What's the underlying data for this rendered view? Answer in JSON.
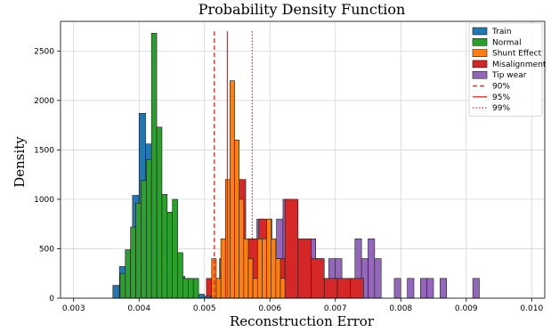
{
  "chart_data": {
    "type": "histogram",
    "title": "Probability Density Function",
    "xlabel": "Reconstruction Error",
    "ylabel": "Density",
    "xlim": [
      0.0028,
      0.0102
    ],
    "ylim": [
      0,
      2800
    ],
    "xticks": [
      0.003,
      0.004,
      0.005,
      0.006,
      0.007,
      0.008,
      0.009,
      0.01
    ],
    "xtick_labels": [
      "0.003",
      "0.004",
      "0.005",
      "0.006",
      "0.007",
      "0.008",
      "0.009",
      "0.010"
    ],
    "yticks": [
      0,
      500,
      1000,
      1500,
      2000,
      2500
    ],
    "ytick_labels": [
      "0",
      "500",
      "1000",
      "1500",
      "2000",
      "2500"
    ],
    "grid": true,
    "legend_position": "top-right",
    "series": [
      {
        "name": "Train",
        "color": "#1f77b4",
        "bins": [
          {
            "x0": 0.0036,
            "x1": 0.0037,
            "y": 130
          },
          {
            "x0": 0.0037,
            "x1": 0.0038,
            "y": 320
          },
          {
            "x0": 0.0038,
            "x1": 0.0039,
            "y": 480
          },
          {
            "x0": 0.0039,
            "x1": 0.004,
            "y": 1040
          },
          {
            "x0": 0.004,
            "x1": 0.0041,
            "y": 1870
          },
          {
            "x0": 0.0041,
            "x1": 0.0042,
            "y": 1560
          },
          {
            "x0": 0.0042,
            "x1": 0.0043,
            "y": 1330
          },
          {
            "x0": 0.0043,
            "x1": 0.0044,
            "y": 850
          },
          {
            "x0": 0.0044,
            "x1": 0.0045,
            "y": 480
          },
          {
            "x0": 0.0045,
            "x1": 0.0046,
            "y": 310
          },
          {
            "x0": 0.0046,
            "x1": 0.0047,
            "y": 220
          },
          {
            "x0": 0.0047,
            "x1": 0.0048,
            "y": 120
          },
          {
            "x0": 0.0048,
            "x1": 0.0049,
            "y": 70
          },
          {
            "x0": 0.0049,
            "x1": 0.005,
            "y": 40
          },
          {
            "x0": 0.005,
            "x1": 0.0051,
            "y": 20
          }
        ]
      },
      {
        "name": "Normal",
        "color": "#2ca02c",
        "bins": [
          {
            "x0": 0.00371,
            "x1": 0.00379,
            "y": 250
          },
          {
            "x0": 0.00379,
            "x1": 0.00387,
            "y": 490
          },
          {
            "x0": 0.00387,
            "x1": 0.00395,
            "y": 720
          },
          {
            "x0": 0.00395,
            "x1": 0.00403,
            "y": 960
          },
          {
            "x0": 0.00403,
            "x1": 0.00411,
            "y": 1190
          },
          {
            "x0": 0.00411,
            "x1": 0.00419,
            "y": 1400
          },
          {
            "x0": 0.00419,
            "x1": 0.00427,
            "y": 2680
          },
          {
            "x0": 0.00427,
            "x1": 0.00435,
            "y": 1730
          },
          {
            "x0": 0.00435,
            "x1": 0.00443,
            "y": 1050
          },
          {
            "x0": 0.00443,
            "x1": 0.00451,
            "y": 870
          },
          {
            "x0": 0.00451,
            "x1": 0.00459,
            "y": 1000
          },
          {
            "x0": 0.00459,
            "x1": 0.00467,
            "y": 460
          },
          {
            "x0": 0.00467,
            "x1": 0.00475,
            "y": 200
          },
          {
            "x0": 0.00475,
            "x1": 0.00483,
            "y": 200
          },
          {
            "x0": 0.00483,
            "x1": 0.00491,
            "y": 200
          }
        ]
      },
      {
        "name": "Shunt Effect",
        "color": "#ff7f0e",
        "bins": [
          {
            "x0": 0.00511,
            "x1": 0.00518,
            "y": 400
          },
          {
            "x0": 0.00518,
            "x1": 0.00525,
            "y": 200
          },
          {
            "x0": 0.00525,
            "x1": 0.00532,
            "y": 600
          },
          {
            "x0": 0.00532,
            "x1": 0.00539,
            "y": 1200
          },
          {
            "x0": 0.00539,
            "x1": 0.00546,
            "y": 2200
          },
          {
            "x0": 0.00546,
            "x1": 0.00553,
            "y": 1600
          },
          {
            "x0": 0.00553,
            "x1": 0.0056,
            "y": 1000
          },
          {
            "x0": 0.0056,
            "x1": 0.00567,
            "y": 600
          },
          {
            "x0": 0.00567,
            "x1": 0.00574,
            "y": 400
          },
          {
            "x0": 0.00574,
            "x1": 0.00581,
            "y": 200
          },
          {
            "x0": 0.00581,
            "x1": 0.00588,
            "y": 600
          },
          {
            "x0": 0.00588,
            "x1": 0.00595,
            "y": 600
          },
          {
            "x0": 0.00595,
            "x1": 0.00602,
            "y": 800
          },
          {
            "x0": 0.00602,
            "x1": 0.00609,
            "y": 600
          },
          {
            "x0": 0.00609,
            "x1": 0.00616,
            "y": 400
          },
          {
            "x0": 0.00616,
            "x1": 0.00623,
            "y": 200
          }
        ]
      },
      {
        "name": "Misalignment",
        "color": "#d62728",
        "bins": [
          {
            "x0": 0.00463,
            "x1": 0.00483,
            "y": 200
          },
          {
            "x0": 0.00503,
            "x1": 0.00523,
            "y": 200
          },
          {
            "x0": 0.00523,
            "x1": 0.00543,
            "y": 400
          },
          {
            "x0": 0.00543,
            "x1": 0.00563,
            "y": 1200
          },
          {
            "x0": 0.00563,
            "x1": 0.00583,
            "y": 600
          },
          {
            "x0": 0.00583,
            "x1": 0.00603,
            "y": 800
          },
          {
            "x0": 0.00603,
            "x1": 0.00623,
            "y": 400
          },
          {
            "x0": 0.00623,
            "x1": 0.00643,
            "y": 1000
          },
          {
            "x0": 0.00643,
            "x1": 0.00663,
            "y": 600
          },
          {
            "x0": 0.00663,
            "x1": 0.00683,
            "y": 400
          },
          {
            "x0": 0.00683,
            "x1": 0.00703,
            "y": 200
          },
          {
            "x0": 0.00703,
            "x1": 0.00723,
            "y": 200
          },
          {
            "x0": 0.00723,
            "x1": 0.00743,
            "y": 200
          }
        ]
      },
      {
        "name": "Tip wear",
        "color": "#9467bd",
        "bins": [
          {
            "x0": 0.0051,
            "x1": 0.0052,
            "y": 200
          },
          {
            "x0": 0.0052,
            "x1": 0.0053,
            "y": 200
          },
          {
            "x0": 0.0053,
            "x1": 0.0054,
            "y": 200
          },
          {
            "x0": 0.0054,
            "x1": 0.0055,
            "y": 200
          },
          {
            "x0": 0.0055,
            "x1": 0.0056,
            "y": 200
          },
          {
            "x0": 0.0056,
            "x1": 0.0057,
            "y": 400
          },
          {
            "x0": 0.0057,
            "x1": 0.0058,
            "y": 600
          },
          {
            "x0": 0.0058,
            "x1": 0.0059,
            "y": 800
          },
          {
            "x0": 0.0059,
            "x1": 0.006,
            "y": 400
          },
          {
            "x0": 0.006,
            "x1": 0.0061,
            "y": 200
          },
          {
            "x0": 0.0061,
            "x1": 0.0062,
            "y": 800
          },
          {
            "x0": 0.0062,
            "x1": 0.0063,
            "y": 1000
          },
          {
            "x0": 0.0063,
            "x1": 0.0064,
            "y": 400
          },
          {
            "x0": 0.0064,
            "x1": 0.0065,
            "y": 200
          },
          {
            "x0": 0.0065,
            "x1": 0.0066,
            "y": 200
          },
          {
            "x0": 0.0066,
            "x1": 0.0067,
            "y": 600
          },
          {
            "x0": 0.0067,
            "x1": 0.0068,
            "y": 400
          },
          {
            "x0": 0.0068,
            "x1": 0.0069,
            "y": 200
          },
          {
            "x0": 0.0069,
            "x1": 0.007,
            "y": 400
          },
          {
            "x0": 0.007,
            "x1": 0.0071,
            "y": 400
          },
          {
            "x0": 0.0071,
            "x1": 0.0072,
            "y": 200
          },
          {
            "x0": 0.0072,
            "x1": 0.0073,
            "y": 200
          },
          {
            "x0": 0.0073,
            "x1": 0.0074,
            "y": 600
          },
          {
            "x0": 0.0074,
            "x1": 0.0075,
            "y": 400
          },
          {
            "x0": 0.0075,
            "x1": 0.0076,
            "y": 600
          },
          {
            "x0": 0.0076,
            "x1": 0.0077,
            "y": 400
          },
          {
            "x0": 0.0079,
            "x1": 0.008,
            "y": 200
          },
          {
            "x0": 0.0081,
            "x1": 0.0082,
            "y": 200
          },
          {
            "x0": 0.0083,
            "x1": 0.0084,
            "y": 200
          },
          {
            "x0": 0.0084,
            "x1": 0.0085,
            "y": 200
          },
          {
            "x0": 0.0086,
            "x1": 0.0087,
            "y": 200
          },
          {
            "x0": 0.0091,
            "x1": 0.0092,
            "y": 200
          }
        ]
      }
    ],
    "thresholds": [
      {
        "name": "90%",
        "x": 0.00515,
        "style": "dashed",
        "color": "#e8251f"
      },
      {
        "name": "95%",
        "x": 0.00535,
        "style": "solid",
        "color": "#e8251f"
      },
      {
        "name": "99%",
        "x": 0.00573,
        "style": "dotted",
        "color": "#e8251f"
      }
    ],
    "draw_order": [
      "Tip wear",
      "Misalignment",
      "Shunt Effect",
      "Train",
      "Normal"
    ]
  }
}
